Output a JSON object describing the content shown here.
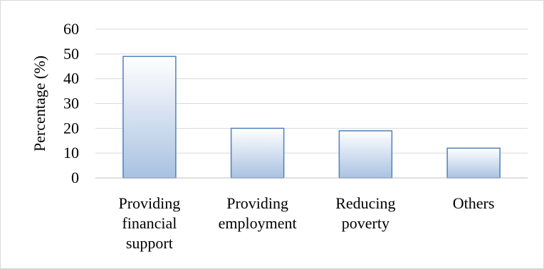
{
  "chart_data": {
    "type": "bar",
    "title": "",
    "xlabel": "",
    "ylabel": "Percentage (%)",
    "ylim": [
      0,
      60
    ],
    "yticks": [
      0,
      10,
      20,
      30,
      40,
      50,
      60
    ],
    "grid": true,
    "legend": "none",
    "categories": [
      [
        "Providing",
        "financial",
        "support"
      ],
      [
        "Providing",
        "employment"
      ],
      [
        "Reducing",
        "poverty"
      ],
      [
        "Others"
      ]
    ],
    "values": [
      49,
      20,
      19,
      12
    ],
    "colors": {
      "bar_top": "#ffffff",
      "bar_bottom": "#a9c2e2",
      "bar_border": "#4f81bd",
      "grid": "#d9d9d9",
      "axis": "#bfbfbf"
    }
  }
}
